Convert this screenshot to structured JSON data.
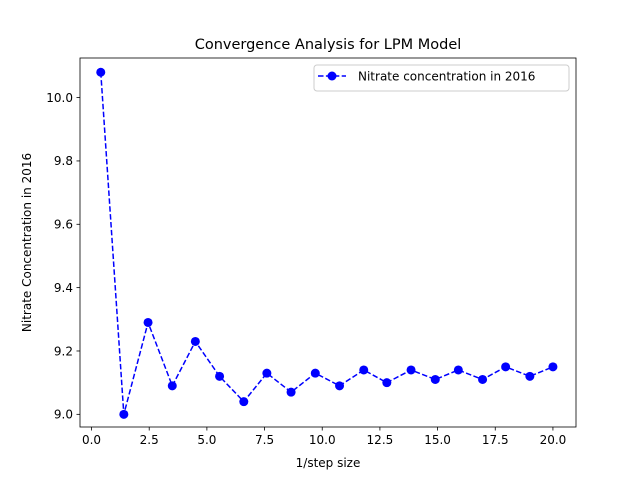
{
  "chart_data": {
    "type": "line",
    "title": "Convergence Analysis for LPM Model",
    "xlabel": "1/step size",
    "ylabel": "Nitrate Concentration in 2016",
    "xlim": [
      -0.5,
      21.0
    ],
    "ylim": [
      8.96,
      10.125
    ],
    "xticks": [
      0.0,
      2.5,
      5.0,
      7.5,
      10.0,
      12.5,
      15.0,
      17.5,
      20.0
    ],
    "xtick_labels": [
      "0.0",
      "2.5",
      "5.0",
      "7.5",
      "10.0",
      "12.5",
      "15.0",
      "17.5",
      "20.0"
    ],
    "yticks": [
      9.0,
      9.2,
      9.4,
      9.6,
      9.8,
      10.0
    ],
    "ytick_labels": [
      "9.0",
      "9.2",
      "9.4",
      "9.6",
      "9.8",
      "10.0"
    ],
    "grid": false,
    "legend_position": "top-right",
    "series": [
      {
        "name": "Nitrate concentration in 2016",
        "color": "#0000ff",
        "linestyle": "dashed",
        "marker": "circle",
        "x": [
          0.4,
          1.4,
          2.45,
          3.5,
          4.5,
          5.55,
          6.6,
          7.6,
          8.65,
          9.7,
          10.75,
          11.8,
          12.8,
          13.85,
          14.9,
          15.9,
          16.95,
          17.95,
          19.0,
          20.0
        ],
        "y": [
          10.08,
          9.0,
          9.29,
          9.09,
          9.23,
          9.12,
          9.04,
          9.13,
          9.07,
          9.13,
          9.09,
          9.14,
          9.1,
          9.14,
          9.11,
          9.14,
          9.11,
          9.15,
          9.12,
          9.15
        ]
      }
    ]
  }
}
